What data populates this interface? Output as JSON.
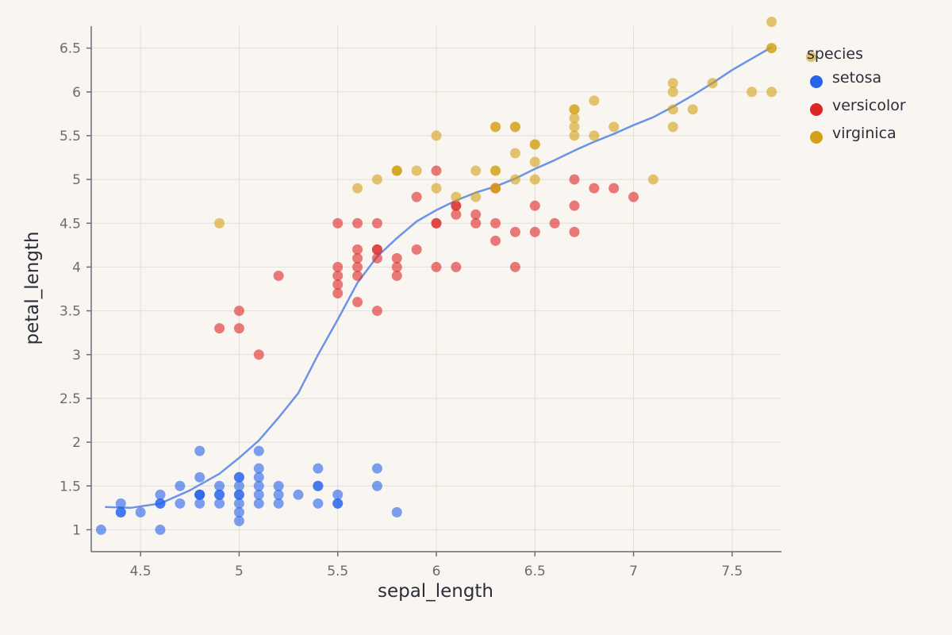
{
  "chart_data": {
    "type": "scatter",
    "title": "",
    "xlabel": "sepal_length",
    "ylabel": "petal_length",
    "xlim": [
      4.25,
      7.75
    ],
    "ylim": [
      0.75,
      6.75
    ],
    "xticks": [
      4.5,
      5,
      5.5,
      6,
      6.5,
      7,
      7.5
    ],
    "xtick_labels": [
      "4.5",
      "5",
      "5.5",
      "6",
      "6.5",
      "7",
      "7.5"
    ],
    "yticks": [
      1,
      1.5,
      2,
      2.5,
      3,
      3.5,
      4,
      4.5,
      5,
      5.5,
      6,
      6.5
    ],
    "ytick_labels": [
      "1",
      "1.5",
      "2",
      "2.5",
      "3",
      "3.5",
      "4",
      "4.5",
      "5",
      "5.5",
      "6",
      "6.5"
    ],
    "grid": true,
    "legend": {
      "title": "species",
      "position": "top-right"
    },
    "series": [
      {
        "name": "setosa",
        "color": "#2563eb",
        "points": [
          [
            4.3,
            1.0
          ],
          [
            4.4,
            1.2
          ],
          [
            4.4,
            1.3
          ],
          [
            4.4,
            1.2
          ],
          [
            4.5,
            1.2
          ],
          [
            4.6,
            1.0
          ],
          [
            4.6,
            1.3
          ],
          [
            4.6,
            1.4
          ],
          [
            4.6,
            1.3
          ],
          [
            4.7,
            1.3
          ],
          [
            4.7,
            1.5
          ],
          [
            4.8,
            1.4
          ],
          [
            4.8,
            1.6
          ],
          [
            4.8,
            1.4
          ],
          [
            4.8,
            1.9
          ],
          [
            4.8,
            1.4
          ],
          [
            4.8,
            1.3
          ],
          [
            4.9,
            1.4
          ],
          [
            4.9,
            1.5
          ],
          [
            4.9,
            1.4
          ],
          [
            4.9,
            1.3
          ],
          [
            5.0,
            1.4
          ],
          [
            5.0,
            1.5
          ],
          [
            5.0,
            1.6
          ],
          [
            5.0,
            1.2
          ],
          [
            5.0,
            1.3
          ],
          [
            5.0,
            1.6
          ],
          [
            5.0,
            1.4
          ],
          [
            5.0,
            1.1
          ],
          [
            5.1,
            1.4
          ],
          [
            5.1,
            1.5
          ],
          [
            5.1,
            1.9
          ],
          [
            5.1,
            1.7
          ],
          [
            5.1,
            1.6
          ],
          [
            5.1,
            1.3
          ],
          [
            5.2,
            1.5
          ],
          [
            5.2,
            1.4
          ],
          [
            5.2,
            1.3
          ],
          [
            5.3,
            1.4
          ],
          [
            5.4,
            1.7
          ],
          [
            5.4,
            1.5
          ],
          [
            5.4,
            1.3
          ],
          [
            5.4,
            1.5
          ],
          [
            5.5,
            1.4
          ],
          [
            5.5,
            1.3
          ],
          [
            5.5,
            1.3
          ],
          [
            5.7,
            1.7
          ],
          [
            5.7,
            1.5
          ],
          [
            5.8,
            1.2
          ]
        ]
      },
      {
        "name": "versicolor",
        "color": "#dc2626",
        "points": [
          [
            4.9,
            3.3
          ],
          [
            5.0,
            3.5
          ],
          [
            5.0,
            3.3
          ],
          [
            5.1,
            3.0
          ],
          [
            5.2,
            3.9
          ],
          [
            5.5,
            4.5
          ],
          [
            5.5,
            3.9
          ],
          [
            5.5,
            4.0
          ],
          [
            5.5,
            3.8
          ],
          [
            5.5,
            3.7
          ],
          [
            5.6,
            4.5
          ],
          [
            5.6,
            4.2
          ],
          [
            5.6,
            3.9
          ],
          [
            5.6,
            4.1
          ],
          [
            5.6,
            3.6
          ],
          [
            5.6,
            4.0
          ],
          [
            5.7,
            4.5
          ],
          [
            5.7,
            4.2
          ],
          [
            5.7,
            4.1
          ],
          [
            5.7,
            3.5
          ],
          [
            5.7,
            4.2
          ],
          [
            5.8,
            4.1
          ],
          [
            5.8,
            4.0
          ],
          [
            5.8,
            3.9
          ],
          [
            5.9,
            4.8
          ],
          [
            5.9,
            4.2
          ],
          [
            6.0,
            4.0
          ],
          [
            6.0,
            4.5
          ],
          [
            6.0,
            4.5
          ],
          [
            6.0,
            5.1
          ],
          [
            6.1,
            4.7
          ],
          [
            6.1,
            4.0
          ],
          [
            6.1,
            4.7
          ],
          [
            6.1,
            4.6
          ],
          [
            6.2,
            4.5
          ],
          [
            6.2,
            4.6
          ],
          [
            6.3,
            4.9
          ],
          [
            6.3,
            4.5
          ],
          [
            6.3,
            4.3
          ],
          [
            6.4,
            4.4
          ],
          [
            6.4,
            4.0
          ],
          [
            6.5,
            4.7
          ],
          [
            6.5,
            4.4
          ],
          [
            6.6,
            4.5
          ],
          [
            6.7,
            4.4
          ],
          [
            6.7,
            5.0
          ],
          [
            6.7,
            4.7
          ],
          [
            6.8,
            4.9
          ],
          [
            6.9,
            4.9
          ],
          [
            7.0,
            4.8
          ]
        ]
      },
      {
        "name": "virginica",
        "color": "#d4a017",
        "points": [
          [
            4.9,
            4.5
          ],
          [
            5.6,
            4.9
          ],
          [
            5.7,
            5.0
          ],
          [
            5.8,
            5.1
          ],
          [
            5.8,
            5.1
          ],
          [
            5.8,
            5.1
          ],
          [
            5.9,
            5.1
          ],
          [
            6.0,
            4.9
          ],
          [
            6.0,
            5.5
          ],
          [
            6.1,
            4.8
          ],
          [
            6.2,
            5.1
          ],
          [
            6.2,
            4.8
          ],
          [
            6.3,
            5.1
          ],
          [
            6.3,
            5.1
          ],
          [
            6.3,
            5.6
          ],
          [
            6.3,
            5.6
          ],
          [
            6.3,
            4.9
          ],
          [
            6.3,
            4.9
          ],
          [
            6.4,
            5.0
          ],
          [
            6.4,
            5.6
          ],
          [
            6.4,
            5.3
          ],
          [
            6.4,
            5.6
          ],
          [
            6.5,
            5.0
          ],
          [
            6.5,
            5.2
          ],
          [
            6.5,
            5.4
          ],
          [
            6.5,
            5.4
          ],
          [
            6.7,
            5.8
          ],
          [
            6.7,
            5.8
          ],
          [
            6.7,
            5.7
          ],
          [
            6.7,
            5.5
          ],
          [
            6.7,
            5.6
          ],
          [
            6.8,
            5.5
          ],
          [
            6.8,
            5.9
          ],
          [
            6.9,
            5.6
          ],
          [
            7.1,
            5.0
          ],
          [
            7.2,
            5.6
          ],
          [
            7.2,
            6.0
          ],
          [
            7.2,
            6.1
          ],
          [
            7.2,
            5.8
          ],
          [
            7.3,
            5.8
          ],
          [
            7.4,
            6.1
          ],
          [
            7.6,
            6.0
          ],
          [
            7.7,
            6.5
          ],
          [
            7.7,
            6.5
          ],
          [
            7.7,
            6.8
          ],
          [
            7.7,
            6.0
          ],
          [
            7.9,
            6.4
          ]
        ]
      }
    ],
    "trend_line": {
      "color": "#6b93e6",
      "points": [
        [
          4.32,
          1.26
        ],
        [
          4.45,
          1.25
        ],
        [
          4.6,
          1.3
        ],
        [
          4.75,
          1.45
        ],
        [
          4.9,
          1.64
        ],
        [
          5.0,
          1.82
        ],
        [
          5.1,
          2.02
        ],
        [
          5.2,
          2.28
        ],
        [
          5.3,
          2.56
        ],
        [
          5.4,
          3.0
        ],
        [
          5.5,
          3.4
        ],
        [
          5.6,
          3.82
        ],
        [
          5.7,
          4.12
        ],
        [
          5.8,
          4.33
        ],
        [
          5.9,
          4.52
        ],
        [
          6.0,
          4.65
        ],
        [
          6.1,
          4.76
        ],
        [
          6.2,
          4.85
        ],
        [
          6.3,
          4.92
        ],
        [
          6.4,
          5.01
        ],
        [
          6.5,
          5.12
        ],
        [
          6.6,
          5.22
        ],
        [
          6.7,
          5.33
        ],
        [
          6.8,
          5.43
        ],
        [
          6.9,
          5.52
        ],
        [
          7.0,
          5.62
        ],
        [
          7.1,
          5.71
        ],
        [
          7.2,
          5.83
        ],
        [
          7.3,
          5.96
        ],
        [
          7.4,
          6.1
        ],
        [
          7.5,
          6.25
        ],
        [
          7.6,
          6.38
        ],
        [
          7.7,
          6.51
        ]
      ]
    }
  }
}
